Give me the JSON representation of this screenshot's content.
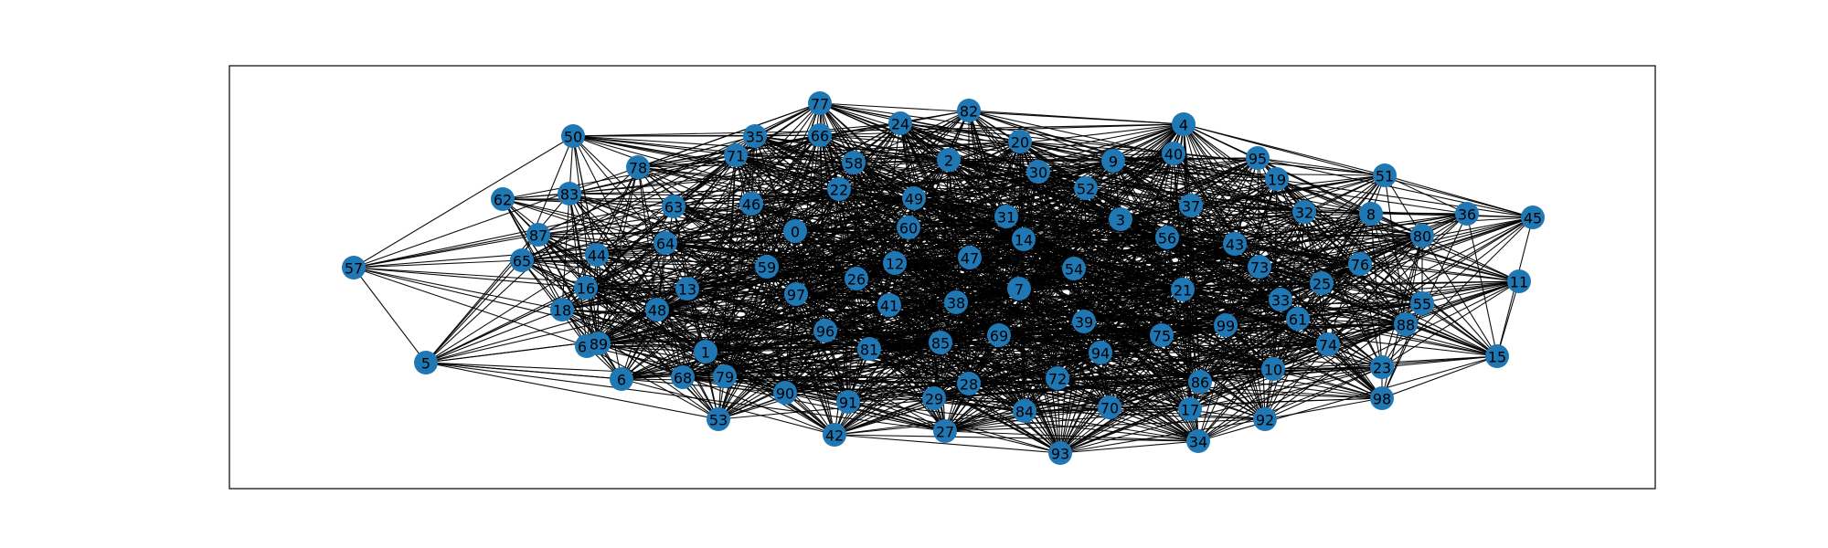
{
  "graph": {
    "node_color": "#1f77b4",
    "edge_color": "#000000",
    "nodes": [
      {
        "id": "0"
      },
      {
        "id": "1"
      },
      {
        "id": "2"
      },
      {
        "id": "3"
      },
      {
        "id": "4"
      },
      {
        "id": "5"
      },
      {
        "id": "6"
      },
      {
        "id": "7"
      },
      {
        "id": "8"
      },
      {
        "id": "9"
      },
      {
        "id": "10"
      },
      {
        "id": "11"
      },
      {
        "id": "12"
      },
      {
        "id": "13"
      },
      {
        "id": "14"
      },
      {
        "id": "15"
      },
      {
        "id": "16"
      },
      {
        "id": "17"
      },
      {
        "id": "18"
      },
      {
        "id": "19"
      },
      {
        "id": "20"
      },
      {
        "id": "21"
      },
      {
        "id": "22"
      },
      {
        "id": "23"
      },
      {
        "id": "24"
      },
      {
        "id": "25"
      },
      {
        "id": "26"
      },
      {
        "id": "27"
      },
      {
        "id": "28"
      },
      {
        "id": "29"
      },
      {
        "id": "30"
      },
      {
        "id": "31"
      },
      {
        "id": "32"
      },
      {
        "id": "33"
      },
      {
        "id": "34"
      },
      {
        "id": "35"
      },
      {
        "id": "36"
      },
      {
        "id": "37"
      },
      {
        "id": "38"
      },
      {
        "id": "39"
      },
      {
        "id": "40"
      },
      {
        "id": "41"
      },
      {
        "id": "42"
      },
      {
        "id": "43"
      },
      {
        "id": "44"
      },
      {
        "id": "45"
      },
      {
        "id": "46"
      },
      {
        "id": "47"
      },
      {
        "id": "48"
      },
      {
        "id": "49"
      },
      {
        "id": "50"
      },
      {
        "id": "51"
      },
      {
        "id": "52"
      },
      {
        "id": "53"
      },
      {
        "id": "54"
      },
      {
        "id": "55"
      },
      {
        "id": "56"
      },
      {
        "id": "57"
      },
      {
        "id": "58"
      },
      {
        "id": "59"
      },
      {
        "id": "60"
      },
      {
        "id": "61"
      },
      {
        "id": "62"
      },
      {
        "id": "63"
      },
      {
        "id": "64"
      },
      {
        "id": "65"
      },
      {
        "id": "66"
      },
      {
        "id": "67"
      },
      {
        "id": "68"
      },
      {
        "id": "69"
      },
      {
        "id": "70"
      },
      {
        "id": "71"
      },
      {
        "id": "72"
      },
      {
        "id": "73"
      },
      {
        "id": "74"
      },
      {
        "id": "75"
      },
      {
        "id": "76"
      },
      {
        "id": "77"
      },
      {
        "id": "78"
      },
      {
        "id": "79"
      },
      {
        "id": "80"
      },
      {
        "id": "81"
      },
      {
        "id": "82"
      },
      {
        "id": "83"
      },
      {
        "id": "84"
      },
      {
        "id": "85"
      },
      {
        "id": "86"
      },
      {
        "id": "87"
      },
      {
        "id": "88"
      },
      {
        "id": "89"
      },
      {
        "id": "90"
      },
      {
        "id": "91"
      },
      {
        "id": "92"
      },
      {
        "id": "93"
      },
      {
        "id": "94"
      },
      {
        "id": "95"
      },
      {
        "id": "96"
      },
      {
        "id": "97"
      },
      {
        "id": "98"
      },
      {
        "id": "99"
      }
    ]
  }
}
